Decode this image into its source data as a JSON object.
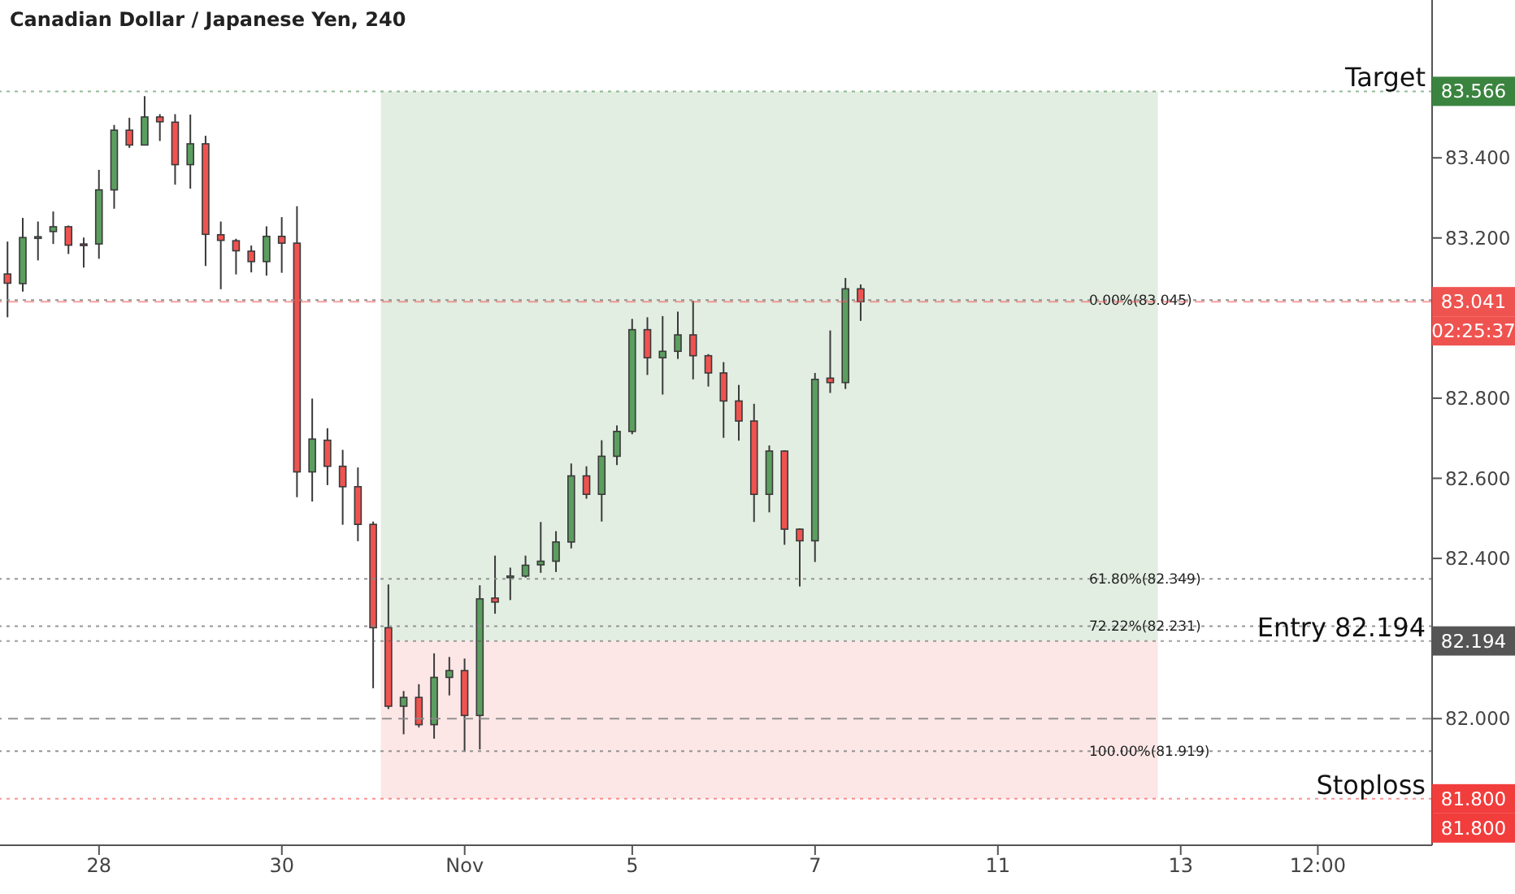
{
  "chart_data": {
    "type": "candlestick",
    "title": "Canadian Dollar / Japanese Yen, 240",
    "categories": [
      null,
      null,
      null,
      null,
      null,
      null,
      "28",
      null,
      null,
      null,
      null,
      null,
      null,
      null,
      null,
      null,
      null,
      null,
      "30",
      null,
      null,
      null,
      null,
      null,
      null,
      null,
      null,
      null,
      null,
      null,
      "Nov",
      null,
      null,
      null,
      null,
      null,
      null,
      null,
      null,
      null,
      null,
      "5",
      null,
      null,
      null,
      null,
      null,
      null,
      null,
      null,
      null,
      null,
      null,
      "7",
      null,
      null,
      null,
      null,
      null,
      null,
      null,
      null,
      null,
      null,
      null,
      "11",
      null,
      null,
      null,
      null,
      null,
      null,
      null,
      null,
      null,
      null,
      null,
      "13",
      null,
      null,
      null,
      null,
      null,
      null,
      null,
      null,
      "12:00",
      null,
      null,
      null,
      null,
      null,
      null,
      null
    ],
    "ohlc": [
      [
        83.11,
        83.191,
        83.002,
        83.087
      ],
      [
        83.086,
        83.25,
        83.066,
        83.201
      ],
      [
        83.202,
        83.241,
        83.144,
        83.203
      ],
      [
        83.216,
        83.266,
        83.185,
        83.228
      ],
      [
        83.228,
        83.231,
        83.16,
        83.182
      ],
      [
        83.185,
        83.201,
        83.126,
        83.184
      ],
      [
        83.185,
        83.37,
        83.148,
        83.32
      ],
      [
        83.32,
        83.482,
        83.273,
        83.469
      ],
      [
        83.469,
        83.5,
        83.425,
        83.432
      ],
      [
        83.432,
        83.554,
        83.431,
        83.502
      ],
      [
        83.502,
        83.509,
        83.442,
        83.49
      ],
      [
        83.489,
        83.509,
        83.333,
        83.383
      ],
      [
        83.383,
        83.508,
        83.323,
        83.435
      ],
      [
        83.435,
        83.455,
        83.13,
        83.209
      ],
      [
        83.208,
        83.241,
        83.072,
        83.194
      ],
      [
        83.193,
        83.198,
        83.109,
        83.168
      ],
      [
        83.167,
        83.181,
        83.114,
        83.141
      ],
      [
        83.141,
        83.229,
        83.106,
        83.204
      ],
      [
        83.204,
        83.252,
        83.113,
        83.187
      ],
      [
        83.187,
        83.279,
        82.553,
        82.616
      ],
      [
        82.616,
        82.799,
        82.542,
        82.698
      ],
      [
        82.695,
        82.725,
        82.583,
        82.63
      ],
      [
        82.63,
        82.671,
        82.484,
        82.579
      ],
      [
        82.579,
        82.627,
        82.443,
        82.485
      ],
      [
        82.485,
        82.492,
        82.076,
        82.227
      ],
      [
        82.227,
        82.335,
        82.024,
        82.031
      ],
      [
        82.031,
        82.069,
        81.961,
        82.053
      ],
      [
        82.053,
        82.086,
        81.978,
        81.985
      ],
      [
        81.985,
        82.163,
        81.95,
        82.103
      ],
      [
        82.103,
        82.154,
        82.058,
        82.12
      ],
      [
        82.12,
        82.15,
        81.917,
        82.008
      ],
      [
        82.008,
        82.333,
        81.923,
        82.299
      ],
      [
        82.301,
        82.407,
        82.262,
        82.291
      ],
      [
        82.355,
        82.377,
        82.296,
        82.356
      ],
      [
        82.356,
        82.407,
        82.352,
        82.383
      ],
      [
        82.384,
        82.491,
        82.364,
        82.393
      ],
      [
        82.393,
        82.468,
        82.366,
        82.441
      ],
      [
        82.441,
        82.637,
        82.425,
        82.606
      ],
      [
        82.606,
        82.63,
        82.549,
        82.56
      ],
      [
        82.56,
        82.695,
        82.492,
        82.655
      ],
      [
        82.655,
        82.732,
        82.633,
        82.717
      ],
      [
        82.717,
        82.998,
        82.71,
        82.971
      ],
      [
        82.971,
        83.002,
        82.858,
        82.901
      ],
      [
        82.901,
        83.005,
        82.809,
        82.917
      ],
      [
        82.917,
        83.016,
        82.898,
        82.958
      ],
      [
        82.958,
        83.043,
        82.847,
        82.906
      ],
      [
        82.906,
        82.91,
        82.829,
        82.863
      ],
      [
        82.863,
        82.89,
        82.701,
        82.793
      ],
      [
        82.793,
        82.833,
        82.694,
        82.743
      ],
      [
        82.743,
        82.786,
        82.491,
        82.56
      ],
      [
        82.56,
        82.682,
        82.515,
        82.668
      ],
      [
        82.668,
        82.67,
        82.434,
        82.473
      ],
      [
        82.473,
        82.475,
        82.33,
        82.444
      ],
      [
        82.444,
        82.863,
        82.391,
        82.847
      ],
      [
        82.85,
        82.969,
        82.813,
        82.839
      ],
      [
        82.839,
        83.1,
        82.823,
        83.073
      ],
      [
        83.073,
        83.084,
        82.993,
        83.041
      ],
      null,
      null,
      null,
      null,
      null,
      null,
      null,
      null,
      null,
      null,
      null,
      null,
      null,
      null,
      null,
      null,
      null,
      null,
      null,
      null,
      null,
      null,
      null,
      null,
      null,
      null,
      null,
      null,
      null,
      null,
      null,
      null,
      null,
      null,
      null,
      null,
      null
    ],
    "colors": [
      "#ef5350",
      "#5b9e5f",
      "#5b9e5f",
      "#5b9e5f",
      "#ef5350",
      "#ef5350",
      "#5b9e5f",
      "#5b9e5f",
      "#ef5350",
      "#5b9e5f",
      "#ef5350",
      "#ef5350",
      "#5b9e5f",
      "#ef5350",
      "#ef5350",
      "#ef5350",
      "#ef5350",
      "#5b9e5f",
      "#ef5350",
      "#ef5350",
      "#5b9e5f",
      "#ef5350",
      "#ef5350",
      "#ef5350",
      "#ef5350",
      "#ef5350",
      "#5b9e5f",
      "#ef5350",
      "#5b9e5f",
      "#5b9e5f",
      "#ef5350",
      "#5b9e5f",
      "#ef5350",
      "#5b9e5f",
      "#5b9e5f",
      "#5b9e5f",
      "#5b9e5f",
      "#5b9e5f",
      "#ef5350",
      "#5b9e5f",
      "#5b9e5f",
      "#5b9e5f",
      "#ef5350",
      "#5b9e5f",
      "#5b9e5f",
      "#ef5350",
      "#ef5350",
      "#ef5350",
      "#ef5350",
      "#ef5350",
      "#5b9e5f",
      "#ef5350",
      "#ef5350",
      "#5b9e5f",
      "#ef5350",
      "#5b9e5f",
      "#ef5350",
      null,
      null,
      null,
      null,
      null,
      null,
      null,
      null,
      null,
      null,
      null,
      null,
      null,
      null,
      null,
      null,
      null,
      null,
      null,
      null,
      null,
      null,
      null,
      null,
      null,
      null,
      null,
      null,
      null,
      null,
      null,
      null,
      null,
      null,
      null,
      null,
      null
    ],
    "ylim": [
      81.684,
      83.794
    ],
    "yticks": [
      {
        "value": 82.0,
        "label": "82.000"
      },
      {
        "value": 82.4,
        "label": "82.400"
      },
      {
        "value": 82.6,
        "label": "82.600"
      },
      {
        "value": 82.8,
        "label": "82.800"
      },
      {
        "value": 83.2,
        "label": "83.200"
      },
      {
        "value": 83.4,
        "label": "83.400"
      }
    ],
    "bands": [
      {
        "axis": "y",
        "from": 82.194,
        "to": 83.566,
        "color": "#e3eee2"
      },
      {
        "axis": "y",
        "from": 81.8,
        "to": 82.194,
        "color": "#fde6e6"
      }
    ],
    "ref_lines": [
      {
        "axis": "y",
        "value": 83.566,
        "label": "Target",
        "color": "#3a843f",
        "line_style": "dotted"
      },
      {
        "axis": "y",
        "value": 83.045,
        "label": "0.00%(83.045)",
        "line_style": "dotted"
      },
      {
        "axis": "y",
        "value": 83.041,
        "label": null,
        "color": "#ef5350",
        "line_style": "dashed"
      },
      {
        "axis": "y",
        "value": 82.349,
        "label": "61.80%(82.349)",
        "line_style": "dotted"
      },
      {
        "axis": "y",
        "value": 82.231,
        "label": "72.22%(82.231)",
        "line_style": "dotted"
      },
      {
        "axis": "y",
        "value": 82.194,
        "label": "Entry 82.194",
        "color": "#555555",
        "line_style": "dotted"
      },
      {
        "axis": "y",
        "value": 82.0,
        "label": null,
        "line_style": "dashed"
      },
      {
        "axis": "y",
        "value": 81.919,
        "label": "100.00%(81.919)",
        "line_style": "dotted"
      },
      {
        "axis": "y",
        "value": 81.8,
        "label": "Stoploss",
        "color": "#f23d3d",
        "line_style": "dotted"
      }
    ],
    "annotations": [
      "83.566",
      "83.041",
      "02:25:37",
      "82.194",
      "81.800",
      "81.800"
    ],
    "legend": false
  }
}
